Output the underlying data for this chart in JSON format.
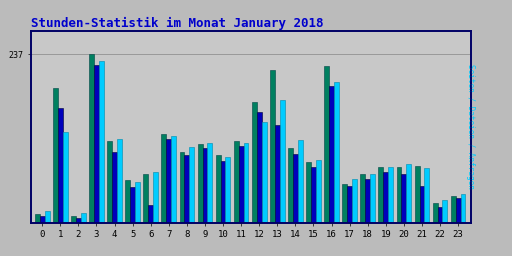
{
  "title": "Stunden-Statistik im Monat January 2018",
  "title_color": "#0000cc",
  "title_fontsize": 9,
  "hours": [
    0,
    1,
    2,
    3,
    4,
    5,
    6,
    7,
    8,
    9,
    10,
    11,
    12,
    13,
    14,
    15,
    16,
    17,
    18,
    19,
    20,
    21,
    22,
    23
  ],
  "ylabel_right": "Seiten / Dateien / Anfragen",
  "ymax_label": "237",
  "ymax": 270,
  "bar_width": 0.27,
  "colors": {
    "seiten": "#008060",
    "dateien": "#0000bb",
    "anfragen": "#00ccff"
  },
  "seiten": [
    12,
    190,
    10,
    237,
    115,
    60,
    68,
    125,
    100,
    110,
    95,
    115,
    170,
    215,
    105,
    85,
    220,
    55,
    68,
    78,
    78,
    80,
    28,
    38
  ],
  "dateien": [
    9,
    162,
    7,
    222,
    100,
    50,
    25,
    118,
    95,
    105,
    87,
    108,
    155,
    138,
    96,
    78,
    192,
    52,
    62,
    72,
    68,
    52,
    22,
    35
  ],
  "anfragen": [
    17,
    128,
    13,
    228,
    118,
    57,
    72,
    122,
    107,
    112,
    92,
    112,
    142,
    172,
    117,
    88,
    198,
    62,
    68,
    78,
    82,
    77,
    32,
    40
  ],
  "background_color": "#bbbbbb",
  "plot_bg_color": "#c8c8c8",
  "grid_color": "#999999",
  "border_color": "#000066",
  "fig_width": 5.12,
  "fig_height": 2.56,
  "dpi": 100
}
